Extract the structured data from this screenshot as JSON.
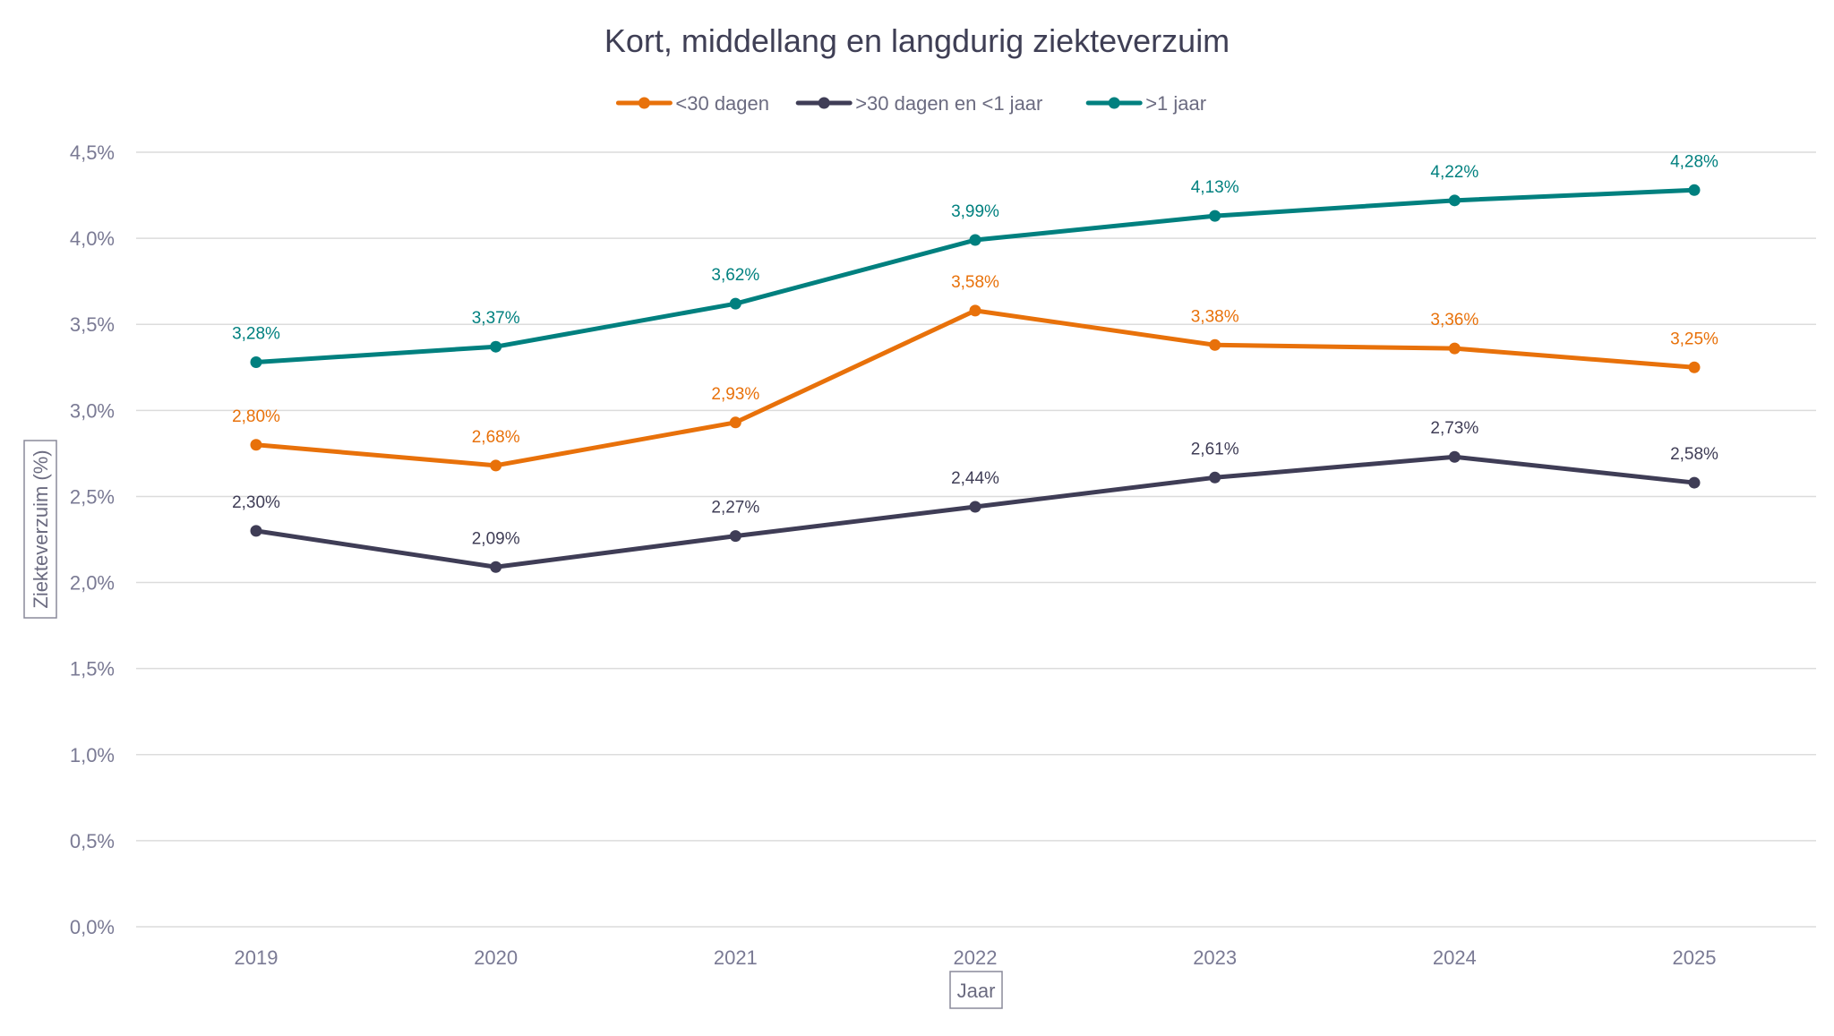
{
  "chart_data": {
    "type": "line",
    "title": "Kort, middellang en langdurig ziekteverzuim",
    "xlabel": "Jaar",
    "ylabel": "Ziekteverzuim (%)",
    "categories": [
      "2019",
      "2020",
      "2021",
      "2022",
      "2023",
      "2024",
      "2025"
    ],
    "ylim": [
      0,
      4.5
    ],
    "yticks": [
      0,
      0.5,
      1.0,
      1.5,
      2.0,
      2.5,
      3.0,
      3.5,
      4.0,
      4.5
    ],
    "ytick_labels": [
      "0,0%",
      "0,5%",
      "1,0%",
      "1,5%",
      "2,0%",
      "2,5%",
      "3,0%",
      "3,5%",
      "4,0%",
      "4,5%"
    ],
    "legend_position": "top-center",
    "grid": true,
    "series": [
      {
        "name": "<30 dagen",
        "color": "#e8710a",
        "values": [
          2.8,
          2.68,
          2.93,
          3.58,
          3.38,
          3.36,
          3.25
        ],
        "labels": [
          "2,80%",
          "2,68%",
          "2,93%",
          "3,58%",
          "3,38%",
          "3,36%",
          "3,25%"
        ]
      },
      {
        "name": ">30 dagen en <1 jaar",
        "color": "#3f3d56",
        "values": [
          2.3,
          2.09,
          2.27,
          2.44,
          2.61,
          2.73,
          2.58
        ],
        "labels": [
          "2,30%",
          "2,09%",
          "2,27%",
          "2,44%",
          "2,61%",
          "2,73%",
          "2,58%"
        ]
      },
      {
        "name": ">1 jaar",
        "color": "#00807f",
        "values": [
          3.28,
          3.37,
          3.62,
          3.99,
          4.13,
          4.22,
          4.28
        ],
        "labels": [
          "3,28%",
          "3,37%",
          "3,62%",
          "3,99%",
          "4,13%",
          "4,22%",
          "4,28%"
        ]
      }
    ]
  }
}
